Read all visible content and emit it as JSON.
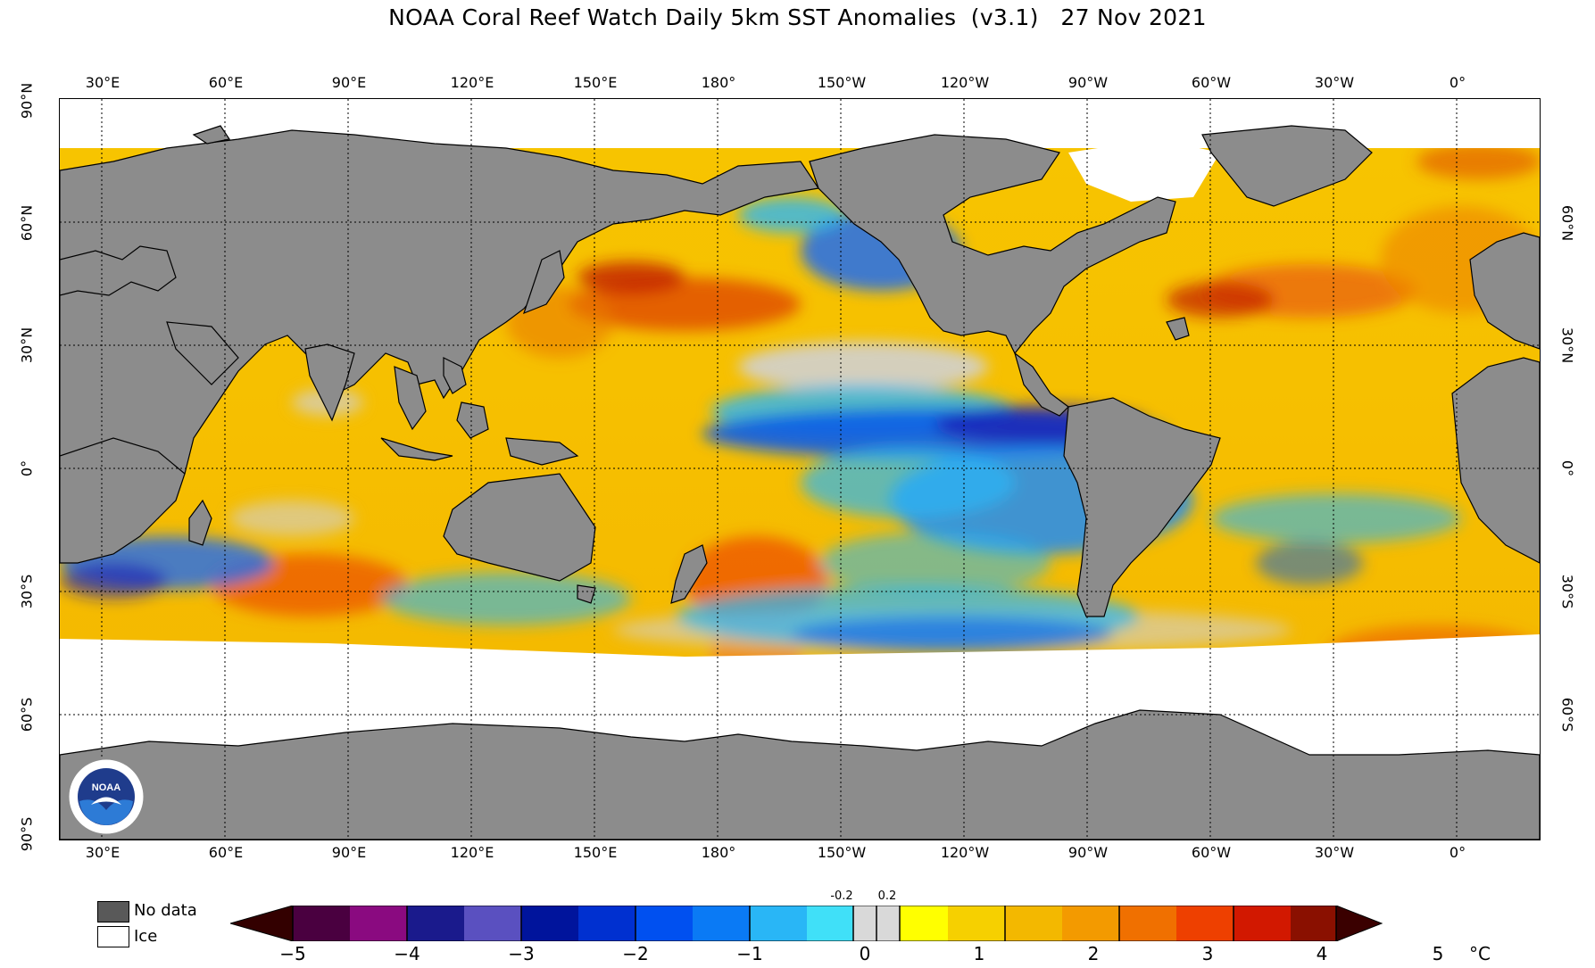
{
  "title": "NOAA Coral Reef Watch Daily 5km SST Anomalies  (v3.1)   27 Nov 2021",
  "lon_labels": [
    "30°E",
    "60°E",
    "90°E",
    "120°E",
    "150°E",
    "180°",
    "150°W",
    "120°W",
    "90°W",
    "60°W",
    "30°W",
    "0°"
  ],
  "lat_labels_left": [
    "90°N",
    "60°N",
    "30°N",
    "0°",
    "30°S",
    "60°S",
    "90°S"
  ],
  "lat_labels_right": [
    "60°N",
    "30°N",
    "0°",
    "30°S",
    "60°S"
  ],
  "legend": {
    "no_data": "No data",
    "ice": "Ice"
  },
  "colorbar": {
    "ticks": [
      "−5",
      "−4",
      "−3",
      "−2",
      "−1",
      "0",
      "1",
      "2",
      "3",
      "4",
      "5"
    ],
    "small_ticks": [
      "-0.2",
      "0.2"
    ],
    "unit": "°C"
  },
  "colors": {
    "land": "#8c8c8c",
    "no_data": "#595959",
    "ice": "#ffffff",
    "neutral": "#d9d9d9",
    "warm": "#f5c800",
    "hot": "#ee5a00",
    "cool": "#29b6f6",
    "cold": "#0a5de6"
  },
  "logo_text": "NOAA"
}
